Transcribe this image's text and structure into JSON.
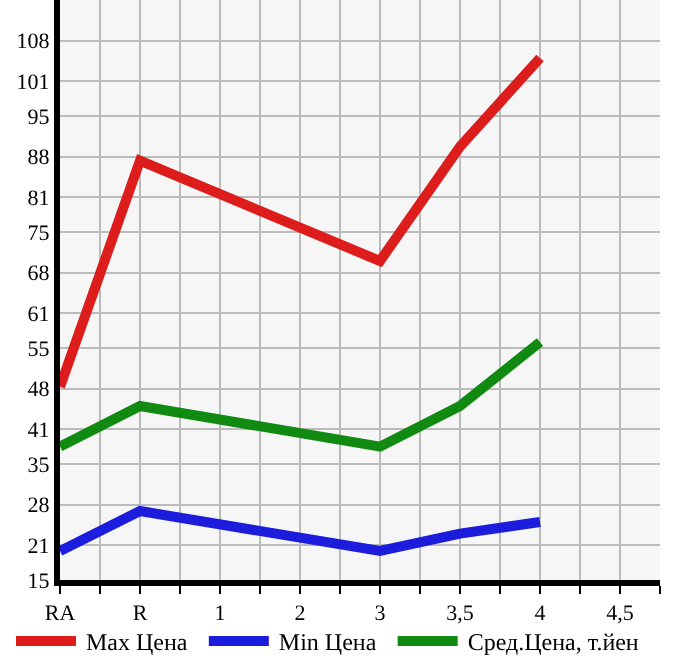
{
  "chart_data": {
    "type": "line",
    "categories": [
      "RA",
      "R",
      "1",
      "2",
      "3",
      "3,5",
      "4",
      "4,5"
    ],
    "series": [
      {
        "name": "Max Цена",
        "color": "#dd1c1c",
        "values": [
          48.3,
          87.3,
          null,
          null,
          70,
          89.7,
          105,
          null
        ]
      },
      {
        "name": "Min Цена",
        "color": "#1c1cdd",
        "values": [
          20,
          26.9,
          null,
          null,
          20,
          23,
          25,
          null
        ]
      },
      {
        "name": "Сред.Цена, т.йен",
        "color": "#108a10",
        "values": [
          38,
          45,
          null,
          null,
          38,
          45,
          56,
          null
        ]
      }
    ],
    "ylim": [
      15,
      115
    ],
    "yticks": [
      15,
      21,
      28,
      35,
      41,
      48,
      55,
      61,
      68,
      75,
      81,
      88,
      95,
      101,
      108
    ],
    "grid": true,
    "legend": "bottom",
    "marker": "none",
    "line_style": "solid"
  }
}
